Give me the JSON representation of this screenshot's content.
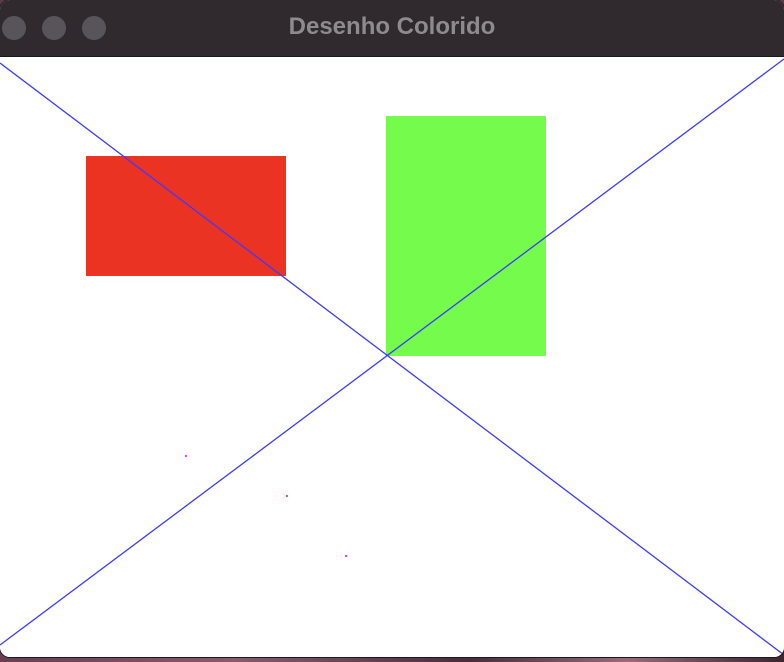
{
  "window": {
    "title": "Desenho Colorido"
  },
  "colors": {
    "titlebar": "#302a2e",
    "title_text": "#8e8a8e",
    "traffic_light": "#58545a",
    "canvas_background": "#ffffff",
    "red_rectangle": "#ea3323",
    "green_rectangle": "#75fb4c",
    "diagonal_lines": "#3b3bff",
    "points": "#e040fb"
  },
  "drawing": {
    "shapes": [
      "red-rectangle",
      "green-rectangle",
      "diagonal-line",
      "diagonal-line",
      "point",
      "point",
      "point"
    ]
  }
}
